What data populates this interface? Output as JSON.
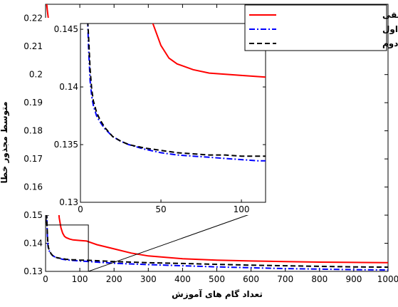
{
  "colors": {
    "series_1": "#ff0000",
    "series_2": "#0000ff",
    "series_3": "#000000"
  },
  "chart_data": {
    "type": "line",
    "xlabel": "تعداد گام های آموزش",
    "ylabel": "متوسط مجذور خطا",
    "xlim": [
      0,
      1000
    ],
    "ylim": [
      0.13,
      0.225
    ],
    "xticks": [
      0,
      100,
      200,
      300,
      400,
      500,
      600,
      700,
      800,
      900,
      1000
    ],
    "yticks": [
      0.13,
      0.14,
      0.15,
      0.16,
      0.17,
      0.18,
      0.19,
      0.2,
      0.21,
      0.22
    ],
    "ytick_labels": [
      "0.13",
      "0.14",
      "0.15",
      "0.16",
      "0.17",
      "0.18",
      "0.19",
      "0.2",
      "0.21",
      "0.22"
    ],
    "legend_position": "top-right",
    "grid": false,
    "series": [
      {
        "name": "شبکه چند لایه حقیقی",
        "color": "#ff0000",
        "style": "solid",
        "x": [
          1,
          5,
          10,
          15,
          20,
          25,
          30,
          35,
          40,
          45,
          50,
          55,
          60,
          70,
          80,
          100,
          120,
          150,
          200,
          250,
          300,
          400,
          500,
          600,
          700,
          800,
          900,
          1000
        ],
        "y": [
          0.228,
          0.223,
          0.218,
          0.211,
          0.2,
          0.183,
          0.166,
          0.156,
          0.149,
          0.1455,
          0.1436,
          0.1425,
          0.142,
          0.1415,
          0.1412,
          0.141,
          0.1408,
          0.1395,
          0.138,
          0.1365,
          0.1355,
          0.1345,
          0.134,
          0.1337,
          0.1335,
          0.1333,
          0.1332,
          0.1331
        ]
      },
      {
        "name": "تابع فعال ساز اول",
        "color": "#0000ff",
        "style": "dashdot",
        "x": [
          0,
          1,
          2,
          3,
          4,
          5,
          6,
          7,
          8,
          10,
          12,
          15,
          20,
          25,
          30,
          40,
          50,
          60,
          70,
          80,
          90,
          100,
          110,
          115,
          150,
          200,
          300,
          400,
          500,
          600,
          700,
          800,
          900,
          1000
        ],
        "y": [
          0.205,
          0.192,
          0.17,
          0.155,
          0.148,
          0.1435,
          0.1405,
          0.1392,
          0.1384,
          0.1375,
          0.137,
          0.1364,
          0.1357,
          0.1353,
          0.135,
          0.1346,
          0.1343,
          0.1341,
          0.134,
          0.1339,
          0.1338,
          0.1337,
          0.1336,
          0.1336,
          0.1333,
          0.1329,
          0.1324,
          0.132,
          0.1316,
          0.1313,
          0.131,
          0.1308,
          0.1306,
          0.1305
        ]
      },
      {
        "name": "تابع فعال ساز دوم",
        "color": "#000000",
        "style": "dashed",
        "x": [
          0,
          1,
          2,
          3,
          4,
          5,
          6,
          7,
          8,
          10,
          12,
          15,
          20,
          25,
          30,
          40,
          50,
          60,
          70,
          80,
          90,
          100,
          110,
          115,
          150,
          200,
          300,
          400,
          500,
          600,
          700,
          800,
          900,
          1000
        ],
        "y": [
          0.198,
          0.185,
          0.165,
          0.153,
          0.147,
          0.1445,
          0.1415,
          0.1398,
          0.1388,
          0.1378,
          0.1372,
          0.1365,
          0.1357,
          0.1353,
          0.135,
          0.1347,
          0.1345,
          0.1343,
          0.1342,
          0.1341,
          0.1341,
          0.134,
          0.134,
          0.134,
          0.1338,
          0.1335,
          0.1331,
          0.1328,
          0.1325,
          0.1322,
          0.132,
          0.1318,
          0.1316,
          0.1315
        ]
      }
    ],
    "inset": {
      "xlim": [
        0,
        115
      ],
      "ylim": [
        0.13,
        0.1455
      ],
      "xticks": [
        0,
        50,
        100
      ],
      "yticks": [
        0.13,
        0.135,
        0.14,
        0.145
      ],
      "ytick_labels": [
        "0.13",
        "0.135",
        "0.14",
        "0.145"
      ],
      "zoom_region": {
        "xlim": [
          0,
          125
        ],
        "ylim": [
          0.13,
          0.1465
        ]
      }
    }
  }
}
